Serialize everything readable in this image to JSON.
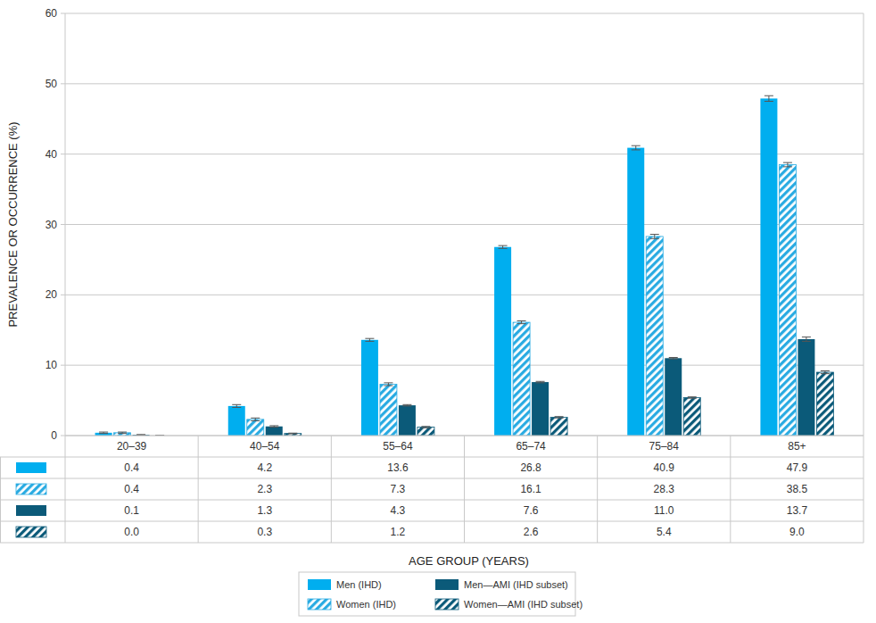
{
  "chart_data": {
    "type": "bar",
    "y_label": "PREVALENCE OR OCCURRENCE (%)",
    "x_label": "AGE GROUP (YEARS)",
    "categories": [
      "20–39",
      "40–54",
      "55–64",
      "65–74",
      "75–84",
      "85+"
    ],
    "series": [
      {
        "name": "Men (IHD)",
        "color": "#00aeef",
        "values": [
          0.4,
          4.2,
          13.6,
          26.8,
          40.9,
          47.9
        ],
        "value_labels": [
          "0.4",
          "4.2",
          "13.6",
          "26.8",
          "40.9",
          "47.9"
        ],
        "errors": [
          0.1,
          0.2,
          0.2,
          0.2,
          0.3,
          0.4
        ]
      },
      {
        "name": "Women (IHD)",
        "color": "#29abe2",
        "values": [
          0.4,
          2.3,
          7.3,
          16.1,
          28.3,
          38.5
        ],
        "value_labels": [
          "0.4",
          "2.3",
          "7.3",
          "16.1",
          "28.3",
          "38.5"
        ],
        "errors": [
          0.1,
          0.2,
          0.2,
          0.2,
          0.3,
          0.3
        ]
      },
      {
        "name": "Men—AMI (IHD subset)",
        "color": "#0b5a79",
        "values": [
          0.1,
          1.3,
          4.3,
          7.6,
          11.0,
          13.7
        ],
        "value_labels": [
          "0.1",
          "1.3",
          "4.3",
          "7.6",
          "11.0",
          "13.7"
        ],
        "errors": [
          0.05,
          0.1,
          0.1,
          0.1,
          0.1,
          0.3
        ]
      },
      {
        "name": "Women—AMI (IHD subset)",
        "color": "#0b5a79",
        "values": [
          0.0,
          0.3,
          1.2,
          2.6,
          5.4,
          9.0
        ],
        "value_labels": [
          "0.0",
          "0.3",
          "1.2",
          "2.6",
          "5.4",
          "9.0"
        ],
        "errors": [
          0.02,
          0.05,
          0.1,
          0.1,
          0.1,
          0.2
        ]
      }
    ],
    "ylim": [
      0,
      60
    ],
    "yticks": [
      0,
      10,
      20,
      30,
      40,
      50,
      60
    ],
    "grid": true,
    "legend": "bottom"
  }
}
